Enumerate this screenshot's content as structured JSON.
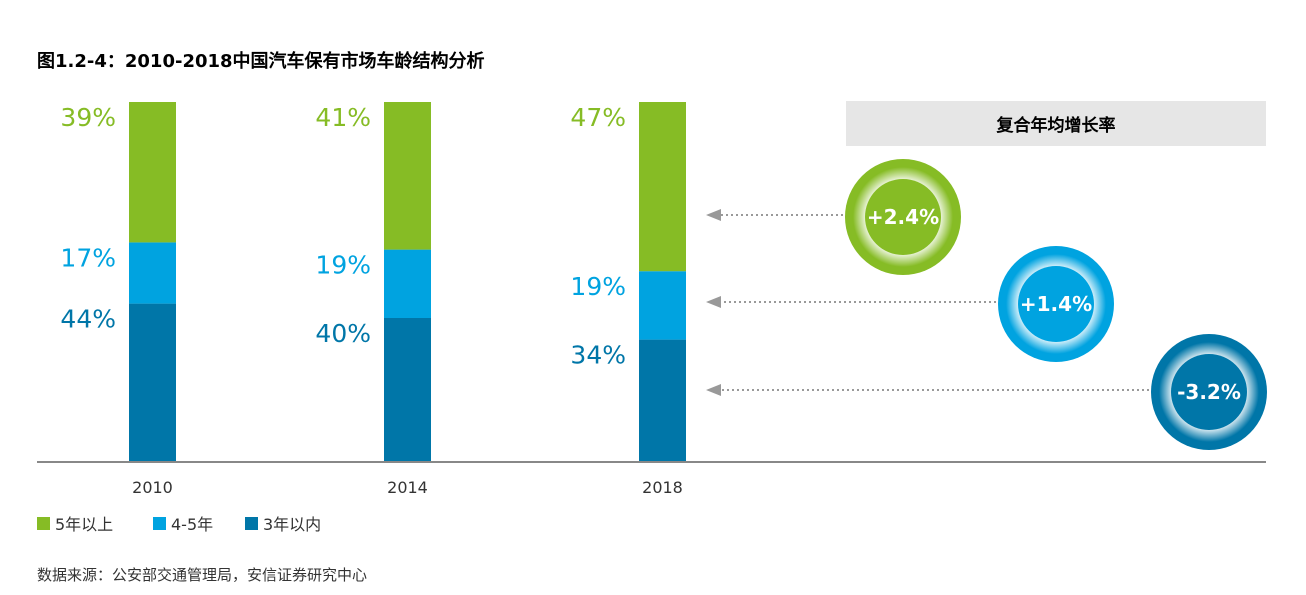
{
  "title": "图1.2-4：2010-2018中国汽车保有市场车龄结构分析",
  "source": "数据来源：公安部交通管理局，安信证券研究中心",
  "colors": {
    "over5": "#86bc25",
    "y4to5": "#00a3e0",
    "under3": "#0076a8",
    "axis": "#888888",
    "cagr_panel": "#e6e6e6"
  },
  "chart_data": {
    "type": "bar",
    "stacked": true,
    "categories": [
      "2010",
      "2014",
      "2018"
    ],
    "series": [
      {
        "name": "3年以内",
        "values": [
          44,
          40,
          34
        ],
        "labels": [
          "44%",
          "40%",
          "34%"
        ],
        "color": "#0076a8"
      },
      {
        "name": "4-5年",
        "values": [
          17,
          19,
          19
        ],
        "labels": [
          "17%",
          "19%",
          "19%"
        ],
        "color": "#00a3e0"
      },
      {
        "name": "5年以上",
        "values": [
          39,
          41,
          47
        ],
        "labels": [
          "39%",
          "41%",
          "47%"
        ],
        "color": "#86bc25"
      }
    ],
    "legend": [
      "5年以上",
      "4-5年",
      "3年以内"
    ],
    "legend_position": "bottom-left",
    "ylim": [
      0,
      100
    ]
  },
  "cagr": {
    "title": "复合年均增长率",
    "items": [
      {
        "series": "5年以上",
        "value": "+2.4%",
        "color": "#86bc25"
      },
      {
        "series": "4-5年",
        "value": "+1.4%",
        "color": "#00a3e0"
      },
      {
        "series": "3年以内",
        "value": "-3.2%",
        "color": "#0076a8"
      }
    ]
  }
}
